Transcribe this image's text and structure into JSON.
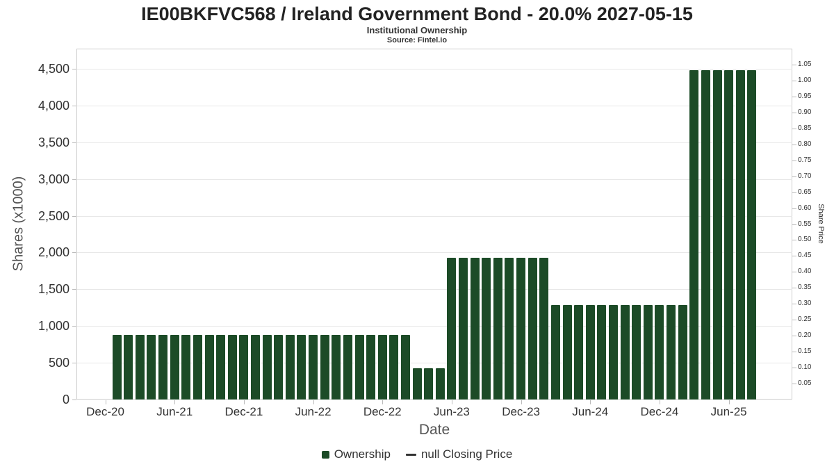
{
  "header": {
    "title": "IE00BKFVC568 / Ireland Government Bond - 20.0% 2027-05-15",
    "subtitle": "Institutional Ownership",
    "source": "Source: Fintel.io"
  },
  "axes": {
    "y_left": {
      "title": "Shares (x1000)",
      "ticks": [
        {
          "label": "0",
          "v": 0
        },
        {
          "label": "500",
          "v": 500
        },
        {
          "label": "1,000",
          "v": 1000
        },
        {
          "label": "1,500",
          "v": 1500
        },
        {
          "label": "2,000",
          "v": 2000
        },
        {
          "label": "2,500",
          "v": 2500
        },
        {
          "label": "3,000",
          "v": 3000
        },
        {
          "label": "3,500",
          "v": 3500
        },
        {
          "label": "4,000",
          "v": 4000
        },
        {
          "label": "4,500",
          "v": 4500
        }
      ]
    },
    "y_right": {
      "title": "Share Price",
      "ticks": [
        "1.05",
        "1.00",
        "0.95",
        "0.90",
        "0.85",
        "0.80",
        "0.75",
        "0.70",
        "0.65",
        "0.60",
        "0.55",
        "0.50",
        "0.45",
        "0.40",
        "0.35",
        "0.30",
        "0.25",
        "0.20",
        "0.15",
        "0.10",
        "0.05"
      ]
    },
    "x": {
      "title": "Date",
      "ticks": [
        {
          "label": "Dec-20",
          "ym": "2020-12"
        },
        {
          "label": "Jun-21",
          "ym": "2021-06"
        },
        {
          "label": "Dec-21",
          "ym": "2021-12"
        },
        {
          "label": "Jun-22",
          "ym": "2022-06"
        },
        {
          "label": "Dec-22",
          "ym": "2022-12"
        },
        {
          "label": "Jun-23",
          "ym": "2023-06"
        },
        {
          "label": "Dec-23",
          "ym": "2023-12"
        },
        {
          "label": "Jun-24",
          "ym": "2024-06"
        },
        {
          "label": "Dec-24",
          "ym": "2024-12"
        },
        {
          "label": "Jun-25",
          "ym": "2025-06"
        }
      ]
    }
  },
  "legend": {
    "items": [
      {
        "label": "Ownership",
        "marker": "square",
        "color": "#1c4b27"
      },
      {
        "label": "null Closing Price",
        "marker": "line",
        "color": "#333333"
      }
    ]
  },
  "colors": {
    "bar": "#1c4b27",
    "price_line": "#333333",
    "grid": "#e7e7e7",
    "axis_line": "#cccccc"
  },
  "chart_data": {
    "type": "bar",
    "title": "IE00BKFVC568 / Ireland Government Bond - 20.0% 2027-05-15",
    "subtitle": "Institutional Ownership",
    "source": "Source: Fintel.io",
    "xlabel": "Date",
    "ylabel": "Shares (x1000)",
    "y2label": "Share Price",
    "ylim": [
      0,
      4774
    ],
    "y2lim": [
      0,
      1.1
    ],
    "legend_position": "bottom",
    "grid": "horizontal-only",
    "series_name": "Ownership",
    "categories": [
      "2021-01",
      "2021-02",
      "2021-03",
      "2021-04",
      "2021-05",
      "2021-06",
      "2021-07",
      "2021-08",
      "2021-09",
      "2021-10",
      "2021-11",
      "2021-12",
      "2022-01",
      "2022-02",
      "2022-03",
      "2022-04",
      "2022-05",
      "2022-06",
      "2022-07",
      "2022-08",
      "2022-09",
      "2022-10",
      "2022-11",
      "2022-12",
      "2023-01",
      "2023-02",
      "2023-03",
      "2023-04",
      "2023-05",
      "2023-06",
      "2023-07",
      "2023-08",
      "2023-09",
      "2023-10",
      "2023-11",
      "2023-12",
      "2024-01",
      "2024-02",
      "2024-03",
      "2024-04",
      "2024-05",
      "2024-06",
      "2024-07",
      "2024-08",
      "2024-09",
      "2024-10",
      "2024-11",
      "2024-12",
      "2025-01",
      "2025-02",
      "2025-03",
      "2025-04",
      "2025-05",
      "2025-06",
      "2025-07",
      "2025-08"
    ],
    "values": [
      875,
      875,
      875,
      875,
      875,
      875,
      875,
      875,
      875,
      875,
      875,
      875,
      875,
      875,
      875,
      875,
      875,
      875,
      875,
      875,
      875,
      875,
      875,
      875,
      875,
      875,
      430,
      430,
      430,
      1930,
      1930,
      1930,
      1930,
      1930,
      1930,
      1930,
      1930,
      1930,
      1290,
      1290,
      1290,
      1290,
      1290,
      1290,
      1290,
      1290,
      1290,
      1290,
      1290,
      1290,
      4480,
      4480,
      4480,
      4480,
      4480,
      4480
    ]
  }
}
